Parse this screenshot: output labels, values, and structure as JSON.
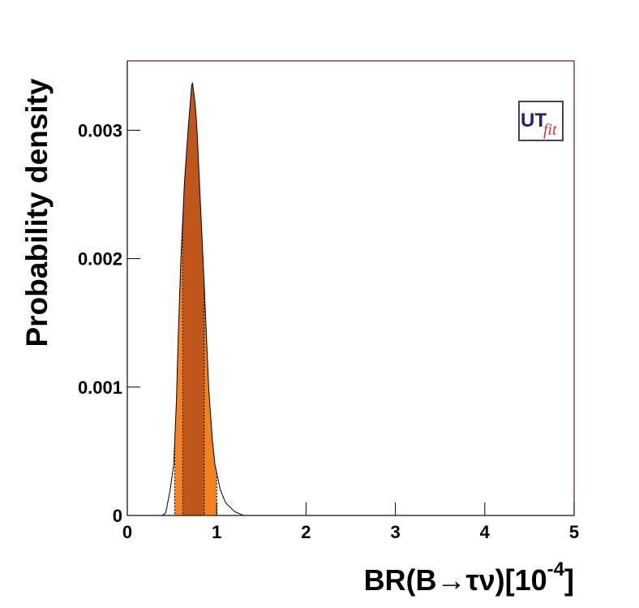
{
  "chart_data": {
    "type": "density",
    "ylabel": "Probability density",
    "xlabel": [
      "BR(B→τν)[10",
      "-4",
      "]"
    ],
    "logo": [
      "UT",
      "fit"
    ],
    "x": [
      0,
      0.39,
      0.43,
      0.48,
      0.52,
      0.55,
      0.57,
      0.6,
      0.64,
      0.68,
      0.72,
      0.73,
      0.76,
      0.78,
      0.82,
      0.86,
      0.91,
      0.95,
      0.98,
      1.04,
      1.1,
      1.2,
      1.3,
      5
    ],
    "values": [
      0,
      0,
      2e-05,
      0.0002,
      0.0004,
      0.0009,
      0.0014,
      0.002,
      0.0026,
      0.003,
      0.00335,
      0.00337,
      0.0032,
      0.003,
      0.0024,
      0.0018,
      0.001,
      0.0006,
      0.0004,
      0.0002,
      0.0001,
      3e-05,
      0,
      0
    ],
    "intervals": [
      {
        "range": [
          0.53,
          1.0
        ],
        "color": "#f58220"
      },
      {
        "range": [
          0.62,
          0.86
        ],
        "color": "#c0561c"
      }
    ],
    "xlim": [
      0,
      5
    ],
    "ylim": [
      0,
      0.00354
    ],
    "xticks": [
      0,
      1,
      2,
      3,
      4,
      5
    ],
    "yticks": [
      0,
      0.001,
      0.002,
      0.003
    ]
  }
}
